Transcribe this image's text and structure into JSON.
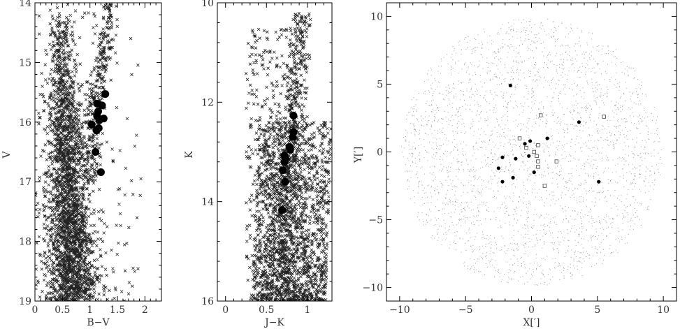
{
  "chart_data": [
    {
      "type": "scatter",
      "id": "cmd-bv",
      "xlabel": "B−V",
      "ylabel": "V",
      "xlim": [
        0,
        2.3
      ],
      "ylim": [
        19,
        14
      ],
      "y_inverted": true,
      "xticks": [
        "0",
        "0.5",
        "1",
        "1.5",
        "2"
      ],
      "yticks": [
        "14",
        "15",
        "16",
        "17",
        "18",
        "19"
      ],
      "grid": false,
      "field_stars": {
        "marker": "cross",
        "approx_count": 3000,
        "ridge": [
          [
            14.0,
            0.45
          ],
          [
            15.0,
            0.5
          ],
          [
            16.0,
            0.54
          ],
          [
            17.0,
            0.6
          ],
          [
            18.0,
            0.65
          ],
          [
            19.0,
            0.68
          ]
        ],
        "giant_branch": [
          [
            14.4,
            1.35
          ],
          [
            15.0,
            1.22
          ],
          [
            15.6,
            1.12
          ],
          [
            16.2,
            1.05
          ],
          [
            16.8,
            1.0
          ]
        ]
      },
      "series": [
        {
          "marker": "filled-circle-large",
          "points": [
            [
              1.28,
              15.53
            ],
            [
              1.13,
              15.69
            ],
            [
              1.22,
              15.72
            ],
            [
              1.15,
              15.82
            ],
            [
              1.13,
              15.9
            ],
            [
              1.25,
              15.94
            ],
            [
              1.17,
              15.97
            ],
            [
              1.03,
              16.04
            ],
            [
              1.16,
              16.1
            ],
            [
              1.12,
              16.14
            ],
            [
              1.1,
              16.5
            ],
            [
              1.2,
              16.84
            ]
          ]
        }
      ]
    },
    {
      "type": "scatter",
      "id": "cmd-jk",
      "xlabel": "J−K",
      "ylabel": "K",
      "xlim": [
        -0.1,
        1.3
      ],
      "ylim": [
        16,
        10
      ],
      "y_inverted": true,
      "xticks": [
        "0",
        "0.5",
        "1"
      ],
      "yticks": [
        "10",
        "12",
        "14",
        "16"
      ],
      "grid": false,
      "field_stars": {
        "marker": "cross",
        "approx_count": 2600,
        "giant_branch": [
          [
            10.4,
            0.93
          ],
          [
            11.5,
            0.86
          ],
          [
            12.5,
            0.8
          ],
          [
            13.5,
            0.74
          ],
          [
            14.5,
            0.7
          ],
          [
            15.3,
            0.7
          ]
        ]
      },
      "series": [
        {
          "marker": "filled-circle-large",
          "points": [
            [
              0.83,
              12.27
            ],
            [
              0.83,
              12.6
            ],
            [
              0.82,
              12.7
            ],
            [
              0.78,
              12.9
            ],
            [
              0.79,
              12.96
            ],
            [
              0.72,
              13.07
            ],
            [
              0.73,
              13.13
            ],
            [
              0.72,
              13.2
            ],
            [
              0.7,
              13.37
            ],
            [
              0.73,
              13.6
            ],
            [
              0.69,
              14.17
            ]
          ]
        }
      ]
    },
    {
      "type": "scatter",
      "id": "spatial",
      "xlabel": "X[′]",
      "ylabel": "Y[′]",
      "xlim": [
        -11,
        11
      ],
      "ylim": [
        -11,
        11
      ],
      "xticks": [
        "−10",
        "−5",
        "0",
        "5",
        "10"
      ],
      "yticks": [
        "−10",
        "−5",
        "0",
        "5",
        "10"
      ],
      "grid": false,
      "field_stars": {
        "marker": "small-dot",
        "approx_count": 3000,
        "radius": 9.9
      },
      "series": [
        {
          "marker": "filled-circle",
          "points": [
            [
              -1.6,
              4.9
            ],
            [
              3.6,
              2.2
            ],
            [
              1.2,
              1.0
            ],
            [
              -0.1,
              0.8
            ],
            [
              -0.5,
              0.6
            ],
            [
              -1.2,
              -0.5
            ],
            [
              -2.2,
              -0.4
            ],
            [
              -2.5,
              -1.2
            ],
            [
              -0.2,
              -0.3
            ],
            [
              0.2,
              -1.5
            ],
            [
              -1.4,
              -1.9
            ],
            [
              -2.2,
              -2.2
            ],
            [
              5.1,
              -2.2
            ]
          ]
        },
        {
          "marker": "open-square",
          "points": [
            [
              0.7,
              2.7
            ],
            [
              5.5,
              2.6
            ],
            [
              -0.9,
              1.0
            ],
            [
              0.5,
              0.5
            ],
            [
              -0.4,
              0.3
            ],
            [
              0.2,
              0.0
            ],
            [
              0.4,
              -0.3
            ],
            [
              0.5,
              -0.7
            ],
            [
              1.9,
              -0.7
            ],
            [
              0.5,
              -1.1
            ],
            [
              1.0,
              -2.5
            ]
          ]
        }
      ]
    }
  ]
}
